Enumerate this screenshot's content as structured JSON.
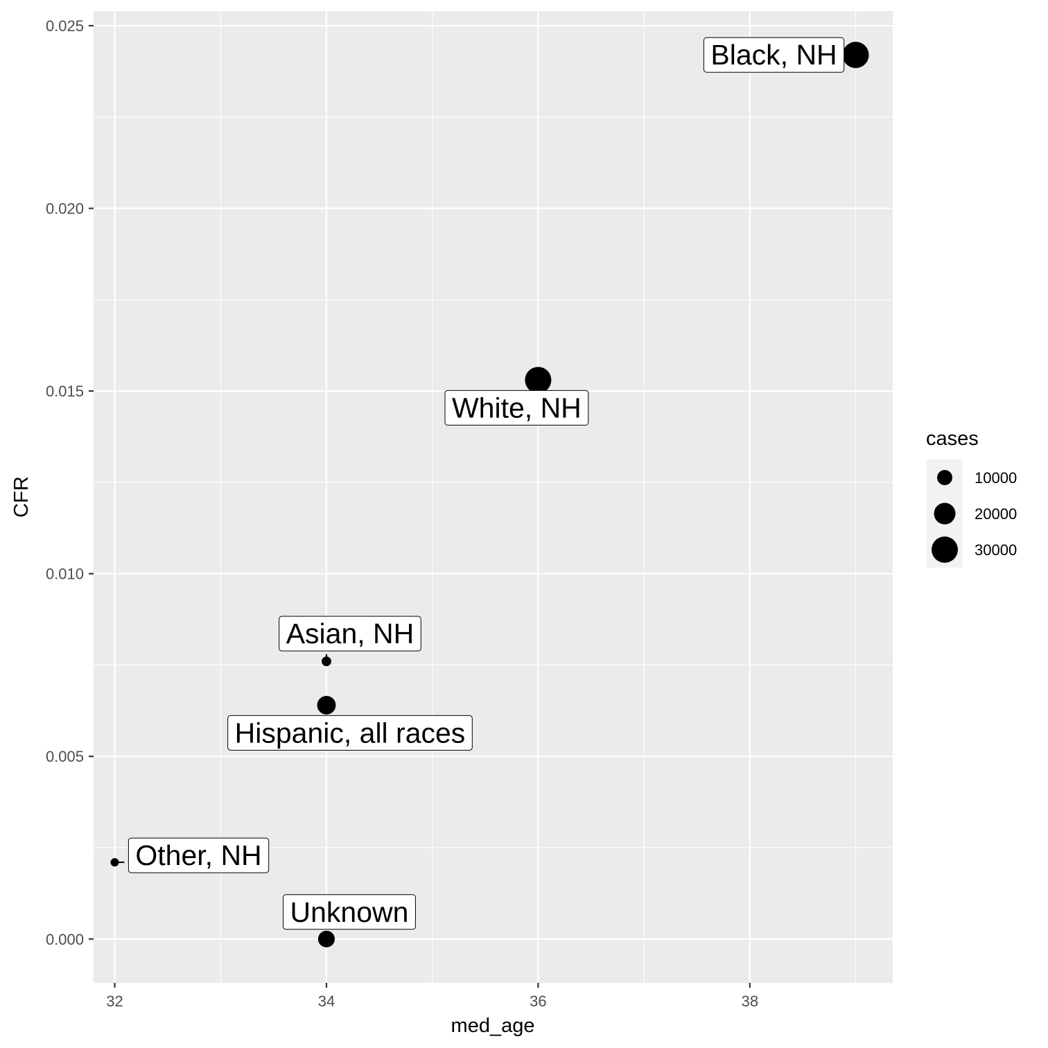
{
  "chart_data": {
    "type": "scatter",
    "title": "",
    "xlabel": "med_age",
    "ylabel": "CFR",
    "xlim": [
      31.8,
      39.35
    ],
    "ylim": [
      -0.0012,
      0.0254
    ],
    "x_ticks": [
      32,
      34,
      36,
      38
    ],
    "x_tick_labels": [
      "32",
      "34",
      "36",
      "38"
    ],
    "x_minor_ticks": [
      33,
      35,
      37,
      39
    ],
    "y_ticks": [
      0.0,
      0.005,
      0.01,
      0.015,
      0.02,
      0.025
    ],
    "y_tick_labels": [
      "0.000",
      "0.005",
      "0.010",
      "0.015",
      "0.020",
      "0.025"
    ],
    "y_minor_ticks": [
      0.0025,
      0.0075,
      0.0125,
      0.0175,
      0.0225
    ],
    "grid": true,
    "points": [
      {
        "label": "Black, NH",
        "x": 39,
        "y": 0.0242,
        "cases": 30000
      },
      {
        "label": "White, NH",
        "x": 36,
        "y": 0.0153,
        "cases": 30000
      },
      {
        "label": "Asian, NH",
        "x": 34,
        "y": 0.0076,
        "cases": 4000
      },
      {
        "label": "Hispanic, all races",
        "x": 34,
        "y": 0.0064,
        "cases": 15000
      },
      {
        "label": "Other, NH",
        "x": 32,
        "y": 0.0021,
        "cases": 3000
      },
      {
        "label": "Unknown",
        "x": 34,
        "y": 0.0,
        "cases": 12000
      }
    ],
    "legend": {
      "title": "cases",
      "position": "right",
      "entries": [
        {
          "label": "10000",
          "value": 10000
        },
        {
          "label": "20000",
          "value": 20000
        },
        {
          "label": "30000",
          "value": 30000
        }
      ]
    },
    "colors": {
      "panel_background": "#ebebeb",
      "grid": "#ffffff",
      "points": "#000000",
      "label_background": "#ffffff"
    }
  }
}
